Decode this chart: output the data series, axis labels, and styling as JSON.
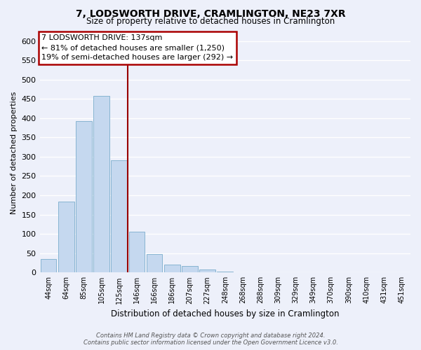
{
  "title": "7, LODSWORTH DRIVE, CRAMLINGTON, NE23 7XR",
  "subtitle": "Size of property relative to detached houses in Cramlington",
  "xlabel": "Distribution of detached houses by size in Cramlington",
  "ylabel": "Number of detached properties",
  "bar_color": "#c5d8ef",
  "bar_edge_color": "#7aadcc",
  "categories": [
    "44sqm",
    "64sqm",
    "85sqm",
    "105sqm",
    "125sqm",
    "146sqm",
    "166sqm",
    "186sqm",
    "207sqm",
    "227sqm",
    "248sqm",
    "268sqm",
    "288sqm",
    "309sqm",
    "329sqm",
    "349sqm",
    "370sqm",
    "390sqm",
    "410sqm",
    "431sqm",
    "451sqm"
  ],
  "values": [
    35,
    184,
    393,
    458,
    290,
    105,
    48,
    21,
    16,
    8,
    2,
    1,
    1,
    0,
    0,
    0,
    0,
    0,
    0,
    0,
    1
  ],
  "ylim": [
    0,
    620
  ],
  "yticks": [
    0,
    50,
    100,
    150,
    200,
    250,
    300,
    350,
    400,
    450,
    500,
    550,
    600
  ],
  "property_line_color": "#990000",
  "annotation_title": "7 LODSWORTH DRIVE: 137sqm",
  "annotation_line1": "← 81% of detached houses are smaller (1,250)",
  "annotation_line2": "19% of semi-detached houses are larger (292) →",
  "annotation_box_facecolor": "#ffffff",
  "annotation_box_edgecolor": "#aa0000",
  "footer_line1": "Contains HM Land Registry data © Crown copyright and database right 2024.",
  "footer_line2": "Contains public sector information licensed under the Open Government Licence v3.0.",
  "background_color": "#edf0fa",
  "grid_color": "#ffffff"
}
